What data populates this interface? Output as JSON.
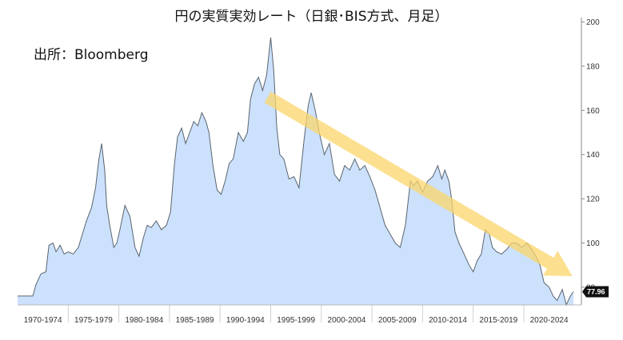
{
  "title": "円の実質実効レート（日銀･BIS方式、月足）",
  "source": "出所：Bloomberg",
  "chart_data": {
    "type": "area",
    "title": "円の実質実効レート（日銀･BIS方式、月足）",
    "xlabel": "",
    "ylabel": "",
    "x_range": [
      1970.0,
      2024.9
    ],
    "ylim": [
      72,
      202
    ],
    "y_ticks": [
      80,
      100,
      120,
      140,
      160,
      180,
      200
    ],
    "y_tick_labels": [
      "80",
      "100",
      "120",
      "140",
      "160",
      "180",
      "200"
    ],
    "x_tick_labels": [
      "1970-1974",
      "1975-1979",
      "1980-1984",
      "1985-1989",
      "1990-1994",
      "1995-1999",
      "2000-2004",
      "2005-2009",
      "2010-2014",
      "2015-2019",
      "2020-2024"
    ],
    "grid": false,
    "y_axis_position": "right",
    "last_value": 77.96,
    "last_value_label": "77.96",
    "colors": {
      "fill": "#cce1fb",
      "line": "#5a6470",
      "arrow": "#fbd56b",
      "badge": "#111111"
    },
    "trend_arrow": {
      "start": [
        1994.7,
        166
      ],
      "end": [
        2024.8,
        85
      ]
    },
    "series": [
      {
        "x": [
          1970.0,
          1971.5,
          1971.8,
          1972.3,
          1972.8,
          1973.1,
          1973.5,
          1973.8,
          1974.2,
          1974.6,
          1975.0,
          1975.5,
          1976.0,
          1976.4,
          1976.8,
          1977.3,
          1977.7,
          1978.0,
          1978.3,
          1978.6,
          1978.8,
          1979.1,
          1979.5,
          1979.8,
          1980.1,
          1980.6,
          1981.1,
          1981.6,
          1982.0,
          1982.4,
          1982.8,
          1983.2,
          1983.7,
          1984.2,
          1984.7,
          1985.1,
          1985.5,
          1985.8,
          1986.2,
          1986.6,
          1987.0,
          1987.4,
          1987.8,
          1988.2,
          1988.6,
          1988.9,
          1989.3,
          1989.7,
          1990.1,
          1990.5,
          1990.9,
          1991.3,
          1991.8,
          1992.3,
          1992.7,
          1993.0,
          1993.4,
          1993.8,
          1994.2,
          1994.6,
          1995.0,
          1995.3,
          1995.6,
          1995.9,
          1996.3,
          1996.8,
          1997.3,
          1997.8,
          1998.3,
          1998.7,
          1999.0,
          1999.4,
          1999.8,
          2000.3,
          2000.8,
          2001.3,
          2001.8,
          2002.3,
          2002.8,
          2003.3,
          2003.8,
          2004.3,
          2004.8,
          2005.3,
          2005.8,
          2006.3,
          2006.8,
          2007.3,
          2007.8,
          2008.3,
          2008.8,
          2009.1,
          2009.5,
          2010.0,
          2010.5,
          2011.0,
          2011.5,
          2011.9,
          2012.2,
          2012.6,
          2012.9,
          2013.2,
          2013.6,
          2014.1,
          2014.6,
          2015.0,
          2015.4,
          2015.8,
          2016.2,
          2016.6,
          2016.9,
          2017.3,
          2017.8,
          2018.3,
          2018.8,
          2019.3,
          2019.8,
          2020.3,
          2020.8,
          2021.2,
          2021.6,
          2022.0,
          2022.5,
          2022.9,
          2023.3,
          2023.8,
          2024.2,
          2024.6,
          2024.9
        ],
        "values": [
          76,
          76,
          81,
          86,
          87,
          99,
          100,
          96,
          99,
          95,
          96,
          95,
          98,
          104,
          110,
          116,
          125,
          137,
          145,
          133,
          117,
          108,
          98,
          100,
          106,
          117,
          112,
          98,
          94,
          102,
          108,
          107,
          110,
          106,
          108,
          114,
          136,
          148,
          152,
          145,
          150,
          155,
          153,
          159,
          155,
          150,
          135,
          124,
          122,
          128,
          136,
          138,
          150,
          146,
          150,
          165,
          172,
          175,
          169,
          176,
          193,
          178,
          152,
          140,
          138,
          129,
          130,
          125,
          147,
          162,
          168,
          160,
          150,
          140,
          145,
          131,
          128,
          135,
          133,
          138,
          133,
          135,
          130,
          124,
          116,
          108,
          104,
          100,
          98,
          108,
          128,
          126,
          128,
          123,
          128,
          130,
          135,
          129,
          133,
          128,
          119,
          105,
          100,
          95,
          90,
          87,
          92,
          95,
          106,
          104,
          98,
          96,
          95,
          97,
          100,
          100,
          98,
          100,
          97,
          94,
          90,
          82,
          80,
          76,
          74,
          79,
          72,
          76,
          78
        ]
      }
    ]
  }
}
